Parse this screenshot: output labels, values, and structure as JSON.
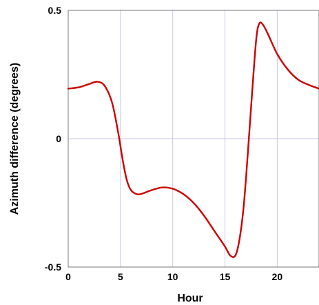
{
  "chart_data": {
    "type": "line",
    "title": "",
    "xlabel": "Hour",
    "ylabel": "Azimuth difference (degrees)",
    "xlim": [
      0,
      24
    ],
    "ylim": [
      -0.5,
      0.5
    ],
    "x_ticks": [
      0,
      5,
      10,
      15,
      20
    ],
    "x_tick_labels": [
      "0",
      "5",
      "10",
      "15",
      "20"
    ],
    "y_ticks": [
      -0.5,
      0,
      0.5
    ],
    "y_tick_labels": [
      "-0.5",
      "0",
      "0.5"
    ],
    "grid": {
      "x": true,
      "y": "zero-line"
    },
    "legend": "none",
    "series": [
      {
        "color": "#cc0000",
        "x": [
          0,
          1,
          2,
          2.8,
          3.5,
          4.2,
          4.8,
          5.2,
          5.6,
          6.0,
          6.5,
          7.0,
          8.0,
          9.0,
          10.0,
          11.0,
          12.0,
          13.0,
          14.0,
          15.0,
          15.5,
          16.0,
          16.4,
          16.8,
          17.2,
          17.6,
          18.0,
          18.3,
          18.7,
          19.2,
          20.0,
          21.0,
          22.0,
          23.0,
          24.0
        ],
        "y": [
          0.195,
          0.2,
          0.213,
          0.222,
          0.205,
          0.14,
          0.02,
          -0.08,
          -0.16,
          -0.2,
          -0.215,
          -0.215,
          -0.2,
          -0.19,
          -0.195,
          -0.215,
          -0.25,
          -0.3,
          -0.36,
          -0.42,
          -0.455,
          -0.455,
          -0.39,
          -0.26,
          -0.05,
          0.18,
          0.39,
          0.45,
          0.44,
          0.4,
          0.33,
          0.27,
          0.23,
          0.21,
          0.195
        ]
      }
    ]
  }
}
